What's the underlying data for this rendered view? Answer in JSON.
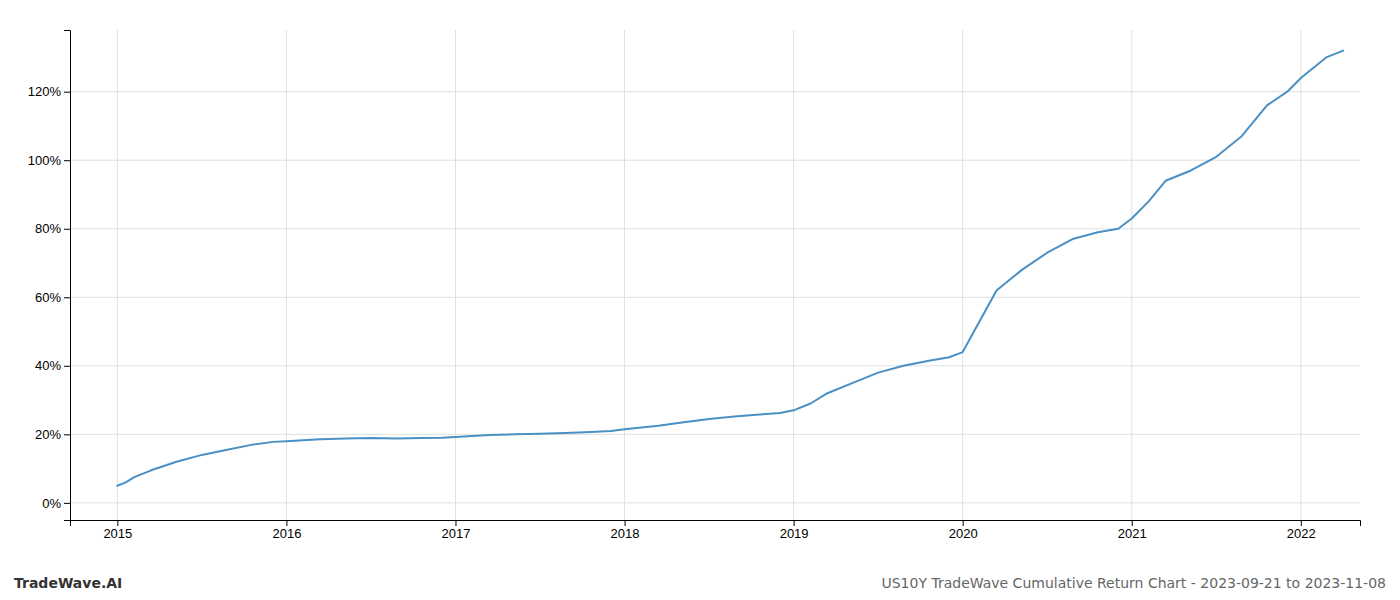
{
  "chart_data": {
    "type": "line",
    "title": "US10Y TradeWave Cumulative Return Chart - 2023-09-21 to 2023-11-08",
    "annotations": [
      "TradeWave.AI"
    ],
    "color": "#4a90c4",
    "grid": true,
    "x": [
      2015.0,
      2015.05,
      2015.1,
      2015.2,
      2015.35,
      2015.5,
      2015.65,
      2015.8,
      2015.92,
      2016.0,
      2016.1,
      2016.2,
      2016.35,
      2016.5,
      2016.65,
      2016.8,
      2016.92,
      2017.0,
      2017.1,
      2017.2,
      2017.35,
      2017.5,
      2017.65,
      2017.8,
      2017.92,
      2018.0,
      2018.1,
      2018.2,
      2018.35,
      2018.5,
      2018.65,
      2018.8,
      2018.92,
      2019.0,
      2019.1,
      2019.2,
      2019.35,
      2019.5,
      2019.65,
      2019.8,
      2019.92,
      2020.0,
      2020.1,
      2020.2,
      2020.35,
      2020.5,
      2020.65,
      2020.8,
      2020.92,
      2021.0,
      2021.1,
      2021.2,
      2021.35,
      2021.5,
      2021.65,
      2021.8,
      2021.92,
      2022.0,
      2022.15,
      2022.25
    ],
    "values": [
      5,
      6,
      7.5,
      9.5,
      12,
      14,
      15.5,
      17,
      17.8,
      18,
      18.3,
      18.6,
      18.8,
      18.9,
      18.8,
      18.9,
      19,
      19.2,
      19.5,
      19.8,
      20,
      20.2,
      20.4,
      20.7,
      21,
      21.5,
      22,
      22.5,
      23.5,
      24.5,
      25.2,
      25.8,
      26.2,
      27,
      29,
      32,
      35,
      38,
      40,
      41.5,
      42.5,
      44,
      53,
      62,
      68,
      73,
      77,
      79,
      80,
      83,
      88,
      94,
      97,
      101,
      107,
      116,
      120,
      124,
      130,
      132
    ],
    "xlim": [
      2014.72,
      2022.35
    ],
    "xticks": [
      2015,
      2016,
      2017,
      2018,
      2019,
      2020,
      2021,
      2022
    ],
    "ylim": [
      -5,
      138
    ],
    "yticks": [
      {
        "value": 0,
        "label": "0%"
      },
      {
        "value": 20,
        "label": "20%"
      },
      {
        "value": 40,
        "label": "40%"
      },
      {
        "value": 60,
        "label": "60%"
      },
      {
        "value": 80,
        "label": "80%"
      },
      {
        "value": 100,
        "label": "100%"
      },
      {
        "value": 120,
        "label": "120%"
      }
    ]
  }
}
